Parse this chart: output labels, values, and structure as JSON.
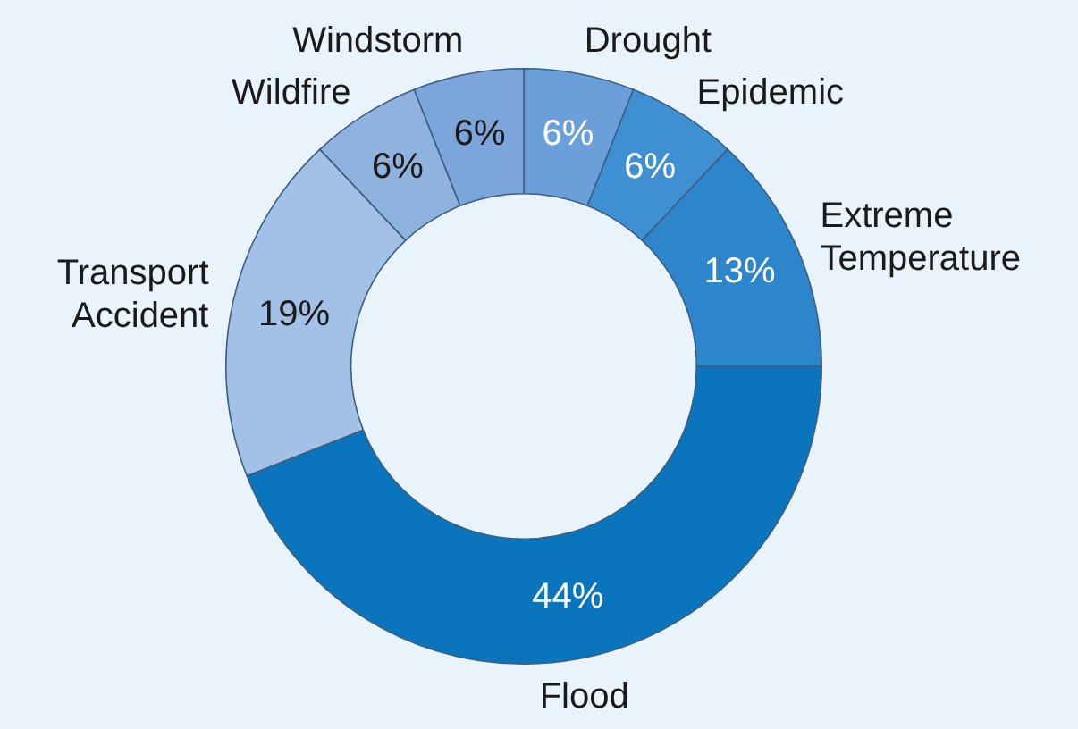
{
  "chart_data": {
    "type": "donut",
    "categories": [
      "Drought",
      "Epidemic",
      "Extreme Temperature",
      "Flood",
      "Transport Accident",
      "Wildfire",
      "Windstorm"
    ],
    "values": [
      6,
      6,
      13,
      44,
      19,
      6,
      6
    ],
    "colors": [
      "#6a9fd9",
      "#3f8fd3",
      "#2d86cb",
      "#0a74bd",
      "#a3c1e6",
      "#90b2df",
      "#7ba5db"
    ],
    "value_labels": [
      "6%",
      "6%",
      "13%",
      "44%",
      "19%",
      "6%",
      "6%"
    ],
    "legend": false
  }
}
